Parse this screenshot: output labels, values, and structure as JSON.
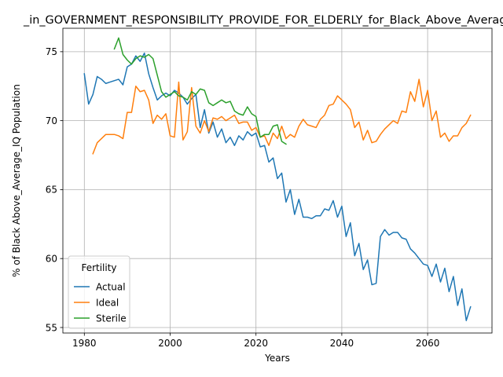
{
  "chart_data": {
    "type": "line",
    "title": "_in_GOVERNMENT_RESPONSIBILITY_PROVIDE_FOR_ELDERLY_for_Black_Above_Average_IQ",
    "xlabel": "Years",
    "ylabel": "% of Black Above_Average_IQ Population",
    "xlim": [
      1975,
      2075
    ],
    "ylim": [
      54.6,
      76.7
    ],
    "xticks": [
      1980,
      2000,
      2020,
      2040,
      2060
    ],
    "yticks": [
      55,
      60,
      65,
      70,
      75
    ],
    "grid": true,
    "legend": {
      "title": "Fertility",
      "placement": "lower-left"
    },
    "series": [
      {
        "name": "Actual",
        "color": "#1f77b4",
        "x": [
          1980,
          1981,
          1982,
          1983,
          1984,
          1985,
          1986,
          1987,
          1988,
          1989,
          1990,
          1991,
          1992,
          1993,
          1994,
          1995,
          1996,
          1997,
          1998,
          1999,
          2000,
          2001,
          2002,
          2003,
          2004,
          2005,
          2006,
          2007,
          2008,
          2009,
          2010,
          2011,
          2012,
          2013,
          2014,
          2015,
          2016,
          2017,
          2018,
          2019,
          2020,
          2021,
          2022,
          2023,
          2024,
          2025,
          2026,
          2027,
          2028,
          2029,
          2030,
          2031,
          2032,
          2033,
          2034,
          2035,
          2036,
          2037,
          2038,
          2039,
          2040,
          2041,
          2042,
          2043,
          2044,
          2045,
          2046,
          2047,
          2048,
          2049,
          2050,
          2051,
          2052,
          2053,
          2054,
          2055,
          2056,
          2057,
          2058,
          2059,
          2060,
          2061,
          2062,
          2063,
          2064,
          2065,
          2066,
          2067,
          2068,
          2069,
          2070
        ],
        "values": [
          73.4,
          71.2,
          71.9,
          73.2,
          73.0,
          72.7,
          72.8,
          72.9,
          73.0,
          72.6,
          73.9,
          74.1,
          74.7,
          74.3,
          74.9,
          73.4,
          72.4,
          71.5,
          71.8,
          72.0,
          71.8,
          72.2,
          72.0,
          71.7,
          71.2,
          71.6,
          71.9,
          69.5,
          70.8,
          69.1,
          69.9,
          68.8,
          69.4,
          68.4,
          68.8,
          68.2,
          68.9,
          68.6,
          69.2,
          68.9,
          69.1,
          68.1,
          68.2,
          67.0,
          67.3,
          65.8,
          66.2,
          64.1,
          65.0,
          63.2,
          64.3,
          63.0,
          63.0,
          62.9,
          63.1,
          63.1,
          63.6,
          63.5,
          64.2,
          63.0,
          63.8,
          61.6,
          62.6,
          60.2,
          61.1,
          59.2,
          59.9,
          58.1,
          58.2,
          61.6,
          62.1,
          61.7,
          61.9,
          61.9,
          61.5,
          61.4,
          60.7,
          60.4,
          60.0,
          59.6,
          59.5,
          58.7,
          59.6,
          58.3,
          59.3,
          57.6,
          58.7,
          56.6,
          57.8,
          55.5,
          56.5
        ]
      },
      {
        "name": "Ideal",
        "color": "#ff7f0e",
        "x": [
          1982,
          1983,
          1984,
          1985,
          1986,
          1987,
          1988,
          1989,
          1990,
          1991,
          1992,
          1993,
          1994,
          1995,
          1996,
          1997,
          1998,
          1999,
          2000,
          2001,
          2002,
          2003,
          2004,
          2005,
          2006,
          2007,
          2008,
          2009,
          2010,
          2011,
          2012,
          2013,
          2014,
          2015,
          2016,
          2017,
          2018,
          2019,
          2020,
          2021,
          2022,
          2023,
          2024,
          2025,
          2026,
          2027,
          2028,
          2029,
          2030,
          2031,
          2032,
          2033,
          2034,
          2035,
          2036,
          2037,
          2038,
          2039,
          2040,
          2041,
          2042,
          2043,
          2044,
          2045,
          2046,
          2047,
          2048,
          2049,
          2050,
          2051,
          2052,
          2053,
          2054,
          2055,
          2056,
          2057,
          2058,
          2059,
          2060,
          2061,
          2062,
          2063,
          2064,
          2065,
          2066,
          2067,
          2068,
          2069,
          2070
        ],
        "values": [
          67.6,
          68.4,
          68.7,
          69.0,
          69.0,
          69.0,
          68.9,
          68.7,
          70.6,
          70.6,
          72.5,
          72.1,
          72.2,
          71.5,
          69.8,
          70.4,
          70.1,
          70.5,
          68.9,
          68.8,
          72.8,
          68.6,
          69.2,
          72.4,
          69.6,
          69.1,
          70.0,
          69.2,
          70.2,
          70.1,
          70.3,
          70.0,
          70.2,
          70.4,
          69.8,
          69.9,
          69.9,
          69.3,
          69.5,
          68.8,
          68.9,
          68.2,
          69.1,
          68.7,
          69.6,
          68.7,
          69.0,
          68.8,
          69.6,
          70.1,
          69.7,
          69.6,
          69.5,
          70.1,
          70.4,
          71.1,
          71.2,
          71.8,
          71.5,
          71.2,
          70.8,
          69.5,
          69.9,
          68.6,
          69.3,
          68.4,
          68.5,
          69.0,
          69.4,
          69.7,
          70.0,
          69.8,
          70.7,
          70.6,
          72.1,
          71.4,
          73.0,
          71.0,
          72.2,
          70.0,
          70.7,
          68.8,
          69.1,
          68.5,
          68.9,
          68.9,
          69.5,
          69.8,
          70.4
        ]
      },
      {
        "name": "Sterile",
        "color": "#2ca02c",
        "x": [
          1987,
          1988,
          1989,
          1990,
          1991,
          1992,
          1993,
          1994,
          1995,
          1996,
          1997,
          1998,
          1999,
          2000,
          2001,
          2002,
          2003,
          2004,
          2005,
          2006,
          2007,
          2008,
          2009,
          2010,
          2011,
          2012,
          2013,
          2014,
          2015,
          2016,
          2017,
          2018,
          2019,
          2020,
          2021,
          2022,
          2023,
          2024,
          2025,
          2026,
          2027
        ],
        "values": [
          75.2,
          76.0,
          74.8,
          74.4,
          74.1,
          74.5,
          74.7,
          74.6,
          74.8,
          74.5,
          73.3,
          72.1,
          71.7,
          71.9,
          72.1,
          71.8,
          71.7,
          71.5,
          72.1,
          71.9,
          72.3,
          72.2,
          71.3,
          71.1,
          71.3,
          71.5,
          71.3,
          71.4,
          70.7,
          70.5,
          70.4,
          71.0,
          70.5,
          70.3,
          68.8,
          69.0,
          69.0,
          69.6,
          69.7,
          68.5,
          68.3
        ]
      }
    ]
  }
}
